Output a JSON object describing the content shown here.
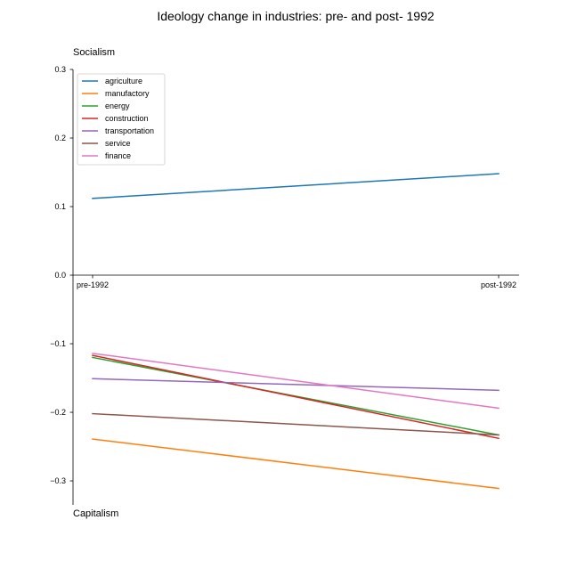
{
  "chart_data": {
    "type": "line",
    "title": "Ideology change in industries: pre- and post- 1992",
    "top_label": "Socialism",
    "bottom_label": "Capitalism",
    "categories": [
      "pre-1992",
      "post-1992"
    ],
    "ylim": [
      -0.335,
      0.3
    ],
    "yticks": [
      {
        "value": 0.3,
        "label": "0.3"
      },
      {
        "value": 0.2,
        "label": "0.2"
      },
      {
        "value": 0.1,
        "label": "0.1"
      },
      {
        "value": 0.0,
        "label": "0.0"
      },
      {
        "value": -0.1,
        "label": "−0.1"
      },
      {
        "value": -0.2,
        "label": "−0.2"
      },
      {
        "value": -0.3,
        "label": "−0.3"
      }
    ],
    "grid": false,
    "legend_position": "upper-left",
    "series": [
      {
        "name": "agriculture",
        "color": "#1f77b4",
        "values": [
          0.112,
          0.148
        ]
      },
      {
        "name": "manufactory",
        "color": "#ff7f0e",
        "values": [
          -0.239,
          -0.311
        ]
      },
      {
        "name": "energy",
        "color": "#2ca02c",
        "values": [
          -0.12,
          -0.233
        ]
      },
      {
        "name": "construction",
        "color": "#d62728",
        "values": [
          -0.117,
          -0.238
        ]
      },
      {
        "name": "transportation",
        "color": "#9467bd",
        "values": [
          -0.151,
          -0.168
        ]
      },
      {
        "name": "service",
        "color": "#8c564b",
        "values": [
          -0.202,
          -0.233
        ]
      },
      {
        "name": "finance",
        "color": "#e377c2",
        "values": [
          -0.114,
          -0.194
        ]
      }
    ]
  }
}
